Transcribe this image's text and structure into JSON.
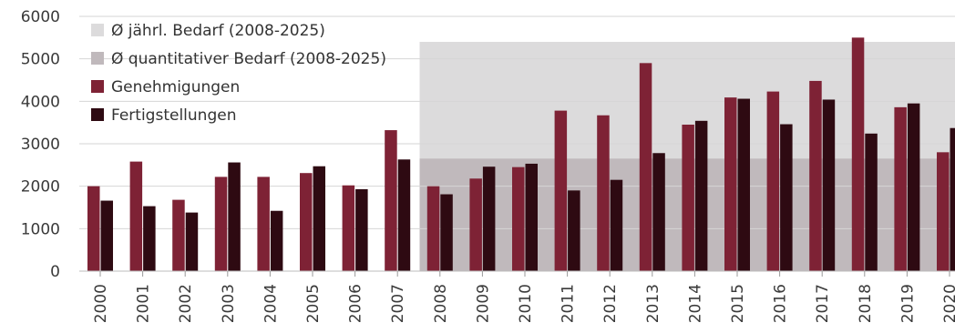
{
  "chart_data": {
    "type": "bar",
    "title": "",
    "xlabel": "",
    "ylabel": "",
    "ylim": [
      0,
      6000
    ],
    "yticks": [
      0,
      1000,
      2000,
      3000,
      4000,
      5000,
      6000
    ],
    "grid": true,
    "legend_position": "top-left",
    "categories": [
      "2000",
      "2001",
      "2002",
      "2003",
      "2004",
      "2005",
      "2006",
      "2007",
      "2008",
      "2009",
      "2010",
      "2011",
      "2012",
      "2013",
      "2014",
      "2015",
      "2016",
      "2017",
      "2018",
      "2019",
      "2020"
    ],
    "series": [
      {
        "name": "Genehmigungen",
        "color": "#7e2235",
        "values": [
          2000,
          2580,
          1680,
          2220,
          2220,
          2310,
          2020,
          3320,
          2000,
          2180,
          2450,
          3780,
          3670,
          4900,
          3450,
          4090,
          4230,
          4480,
          5500,
          3860,
          2800
        ]
      },
      {
        "name": "Fertigstellungen",
        "color": "#2e0a12",
        "values": [
          1660,
          1530,
          1380,
          2560,
          1420,
          2470,
          1930,
          2630,
          1810,
          2460,
          2530,
          1900,
          2150,
          2780,
          3540,
          4060,
          3460,
          4040,
          3240,
          3950,
          3370
        ]
      }
    ],
    "reference_bands": [
      {
        "name": "Ø jährl. Bedarf (2008-2025)",
        "value": 5400,
        "start": "2008",
        "color": "#dcdbdc"
      },
      {
        "name": "Ø quantitativer Bedarf (2008-2025)",
        "value": 2650,
        "start": "2008",
        "color": "#c0b9bc"
      }
    ]
  }
}
